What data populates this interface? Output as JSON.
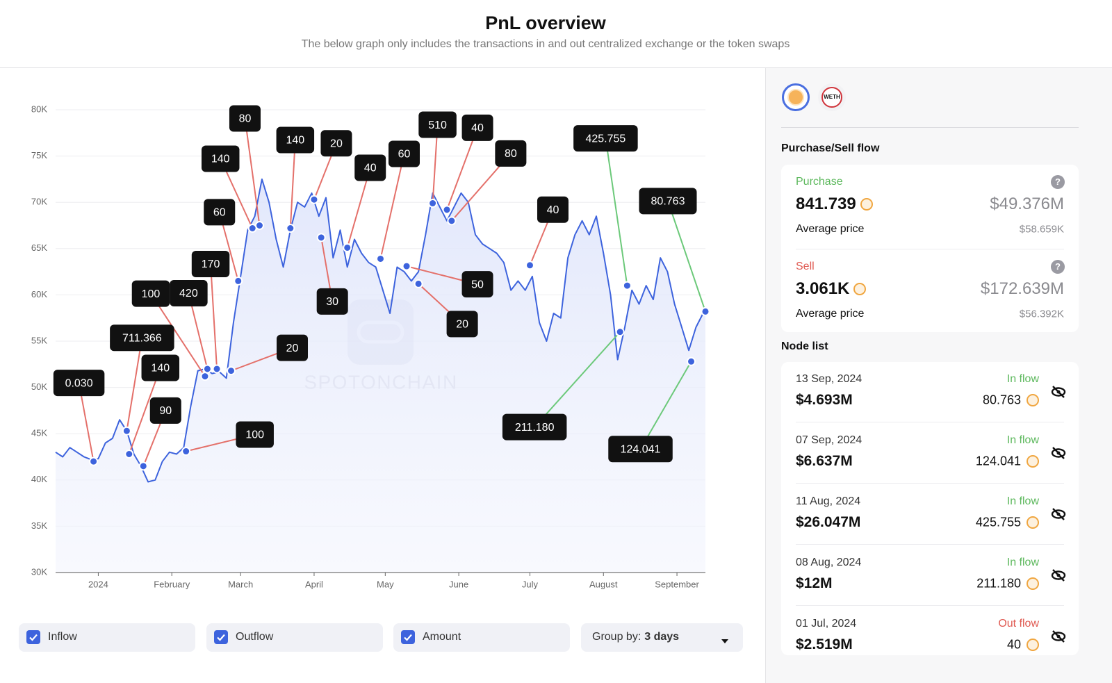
{
  "header": {
    "title": "PnL overview",
    "subtitle": "The below graph only includes the transactions in and out centralized exchange or the token swaps"
  },
  "chart_data": {
    "type": "line",
    "watermark": "SPOTONCHAIN",
    "color": "#3d63dd",
    "grid": true,
    "x": [
      -18,
      -15,
      -12,
      -9,
      -6,
      -3,
      0,
      3,
      6,
      9,
      12,
      15,
      18,
      21,
      24,
      27,
      30,
      33,
      36,
      39,
      42,
      45,
      48,
      51,
      54,
      57,
      60,
      63,
      66,
      69,
      72,
      75,
      78,
      81,
      84,
      87,
      90,
      93,
      96,
      99,
      102,
      105,
      108,
      111,
      114,
      117,
      120,
      123,
      126,
      129,
      132,
      135,
      138,
      141,
      144,
      147,
      150,
      153,
      156,
      159,
      162,
      165,
      168,
      171,
      174,
      177,
      180,
      183,
      186,
      189,
      192,
      195,
      198,
      201,
      204,
      207,
      210,
      213,
      216,
      219,
      222,
      225,
      228,
      231,
      234,
      237,
      240,
      243,
      246,
      249,
      252,
      255,
      256
    ],
    "values": [
      43000,
      42500,
      43500,
      43000,
      42500,
      42200,
      42300,
      44000,
      44500,
      46500,
      45300,
      42800,
      41500,
      39800,
      40000,
      42000,
      43000,
      42800,
      43500,
      48000,
      51800,
      52000,
      51500,
      51700,
      51000,
      57000,
      62000,
      67000,
      68500,
      72500,
      70000,
      66000,
      63000,
      67000,
      70000,
      69500,
      71000,
      68500,
      70500,
      64000,
      67000,
      63000,
      66000,
      64500,
      63500,
      63000,
      60500,
      58000,
      63000,
      62500,
      61500,
      62500,
      66500,
      71000,
      69500,
      68000,
      69500,
      71000,
      70000,
      66500,
      65500,
      65000,
      64500,
      63500,
      60500,
      61500,
      60500,
      62000,
      57000,
      55000,
      58000,
      57500,
      64000,
      66500,
      68000,
      66500,
      68500,
      64500,
      60000,
      53000,
      56500,
      60500,
      59000,
      61000,
      59500,
      64000,
      62500,
      59000,
      56500,
      54000,
      56500,
      58000,
      58300
    ],
    "xlim": [
      -18,
      256
    ],
    "xticks": [
      {
        "value": 0,
        "label": "2024"
      },
      {
        "value": 31,
        "label": "February"
      },
      {
        "value": 60,
        "label": "March"
      },
      {
        "value": 91,
        "label": "April"
      },
      {
        "value": 121,
        "label": "May"
      },
      {
        "value": 152,
        "label": "June"
      },
      {
        "value": 182,
        "label": "July"
      },
      {
        "value": 213,
        "label": "August"
      },
      {
        "value": 244,
        "label": "September"
      }
    ],
    "ylim": [
      30000,
      80000
    ],
    "yticks": [
      {
        "value": 30000,
        "label": "30K"
      },
      {
        "value": 35000,
        "label": "35K"
      },
      {
        "value": 40000,
        "label": "40K"
      },
      {
        "value": 45000,
        "label": "45K"
      },
      {
        "value": 50000,
        "label": "50K"
      },
      {
        "value": 55000,
        "label": "55K"
      },
      {
        "value": 60000,
        "label": "60K"
      },
      {
        "value": 65000,
        "label": "65K"
      },
      {
        "value": 70000,
        "label": "70K"
      },
      {
        "value": 75000,
        "label": "75K"
      },
      {
        "value": 80000,
        "label": "80K"
      }
    ],
    "annotations": [
      {
        "x": -2,
        "y": 42000,
        "label": "0.030",
        "color": "#e4706a"
      },
      {
        "x": 12,
        "y": 45300,
        "label": "711.366",
        "color": "#e4706a"
      },
      {
        "x": 13,
        "y": 42800,
        "label": "140",
        "color": "#e4706a"
      },
      {
        "x": 19,
        "y": 41500,
        "label": "90",
        "color": "#e4706a"
      },
      {
        "x": 37,
        "y": 43100,
        "label": "100",
        "color": "#e4706a"
      },
      {
        "x": 45,
        "y": 51200,
        "label": "100",
        "color": "#e4706a"
      },
      {
        "x": 46,
        "y": 52000,
        "label": "420",
        "color": "#e4706a"
      },
      {
        "x": 50,
        "y": 52000,
        "label": "170",
        "color": "#e4706a"
      },
      {
        "x": 56,
        "y": 51800,
        "label": "20",
        "color": "#e4706a"
      },
      {
        "x": 59,
        "y": 61500,
        "label": "60",
        "color": "#e4706a"
      },
      {
        "x": 65,
        "y": 67200,
        "label": "140",
        "color": "#e4706a"
      },
      {
        "x": 68,
        "y": 67500,
        "label": "80",
        "color": "#e4706a"
      },
      {
        "x": 81,
        "y": 67200,
        "label": "140",
        "color": "#e4706a"
      },
      {
        "x": 91,
        "y": 70300,
        "label": "20",
        "color": "#e4706a"
      },
      {
        "x": 94,
        "y": 66200,
        "label": "30",
        "color": "#e4706a"
      },
      {
        "x": 105,
        "y": 65100,
        "label": "40",
        "color": "#e4706a"
      },
      {
        "x": 119,
        "y": 63900,
        "label": "60",
        "color": "#e4706a"
      },
      {
        "x": 130,
        "y": 63100,
        "label": "50",
        "color": "#e4706a"
      },
      {
        "x": 135,
        "y": 61200,
        "label": "20",
        "color": "#e4706a"
      },
      {
        "x": 141,
        "y": 69900,
        "label": "510",
        "color": "#e4706a"
      },
      {
        "x": 147,
        "y": 69200,
        "label": "40",
        "color": "#e4706a"
      },
      {
        "x": 149,
        "y": 68000,
        "label": "80",
        "color": "#e4706a"
      },
      {
        "x": 182,
        "y": 63200,
        "label": "40",
        "color": "#e4706a"
      },
      {
        "x": 220,
        "y": 56000,
        "label": "211.180",
        "color": "#6cc97a"
      },
      {
        "x": 223,
        "y": 61000,
        "label": "425.755",
        "color": "#6cc97a"
      },
      {
        "x": 250,
        "y": 52800,
        "label": "124.041",
        "color": "#6cc97a"
      },
      {
        "x": 256,
        "y": 58200,
        "label": "80.763",
        "color": "#6cc97a"
      }
    ]
  },
  "sidebar": {
    "token_label": "WETH",
    "flow_title": "Purchase/Sell flow",
    "purchase": {
      "label": "Purchase",
      "amount": "841.739",
      "usd": "$49.376M",
      "avg_label": "Average price",
      "avg": "$58.659K",
      "color": "#5cb85c"
    },
    "sell": {
      "label": "Sell",
      "amount": "3.061K",
      "usd": "$172.639M",
      "avg_label": "Average price",
      "avg": "$56.392K",
      "color": "#e05a52"
    },
    "help": "?",
    "node_title": "Node list",
    "nodes": [
      {
        "date": "13 Sep, 2024",
        "usd": "$4.693M",
        "flow": "In flow",
        "amount": "80.763",
        "color": "#5cb85c"
      },
      {
        "date": "07 Sep, 2024",
        "usd": "$6.637M",
        "flow": "In flow",
        "amount": "124.041",
        "color": "#5cb85c"
      },
      {
        "date": "11 Aug, 2024",
        "usd": "$26.047M",
        "flow": "In flow",
        "amount": "425.755",
        "color": "#5cb85c"
      },
      {
        "date": "08 Aug, 2024",
        "usd": "$12M",
        "flow": "In flow",
        "amount": "211.180",
        "color": "#5cb85c"
      },
      {
        "date": "01 Jul, 2024",
        "usd": "$2.519M",
        "flow": "Out flow",
        "amount": "40",
        "color": "#e05a52"
      }
    ]
  },
  "controls": {
    "checkboxes": [
      "Inflow",
      "Outflow",
      "Amount"
    ],
    "group_label": "Group by:",
    "group_value": "3 days"
  }
}
